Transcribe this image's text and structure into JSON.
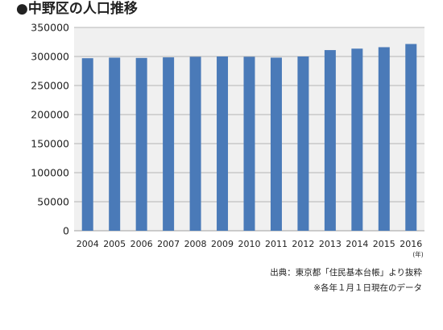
{
  "title": "●中野区の人口推移",
  "notes": {
    "source": "出典：東京都「住民基本台帳」より抜粋",
    "date": "※各年１月１日現在のデータ"
  },
  "colors": {
    "bar": "#4a7ab8",
    "plot_bg": "#f0f0f0",
    "grid": "#a0a0a0"
  },
  "chart_data": {
    "type": "bar",
    "categories": [
      "2004",
      "2005",
      "2006",
      "2007",
      "2008",
      "2009",
      "2010",
      "2011",
      "2012",
      "2013",
      "2014",
      "2015",
      "2016"
    ],
    "series": [
      {
        "values": [
          297000,
          298000,
          297500,
          298500,
          299500,
          300000,
          299500,
          298000,
          300000,
          311000,
          313500,
          316000,
          321500
        ]
      }
    ],
    "yticks": [
      0,
      50000,
      100000,
      150000,
      200000,
      250000,
      300000,
      350000
    ],
    "ylim": [
      0,
      350000
    ],
    "x_unit": "(年)",
    "grid": true,
    "legend": "none"
  }
}
